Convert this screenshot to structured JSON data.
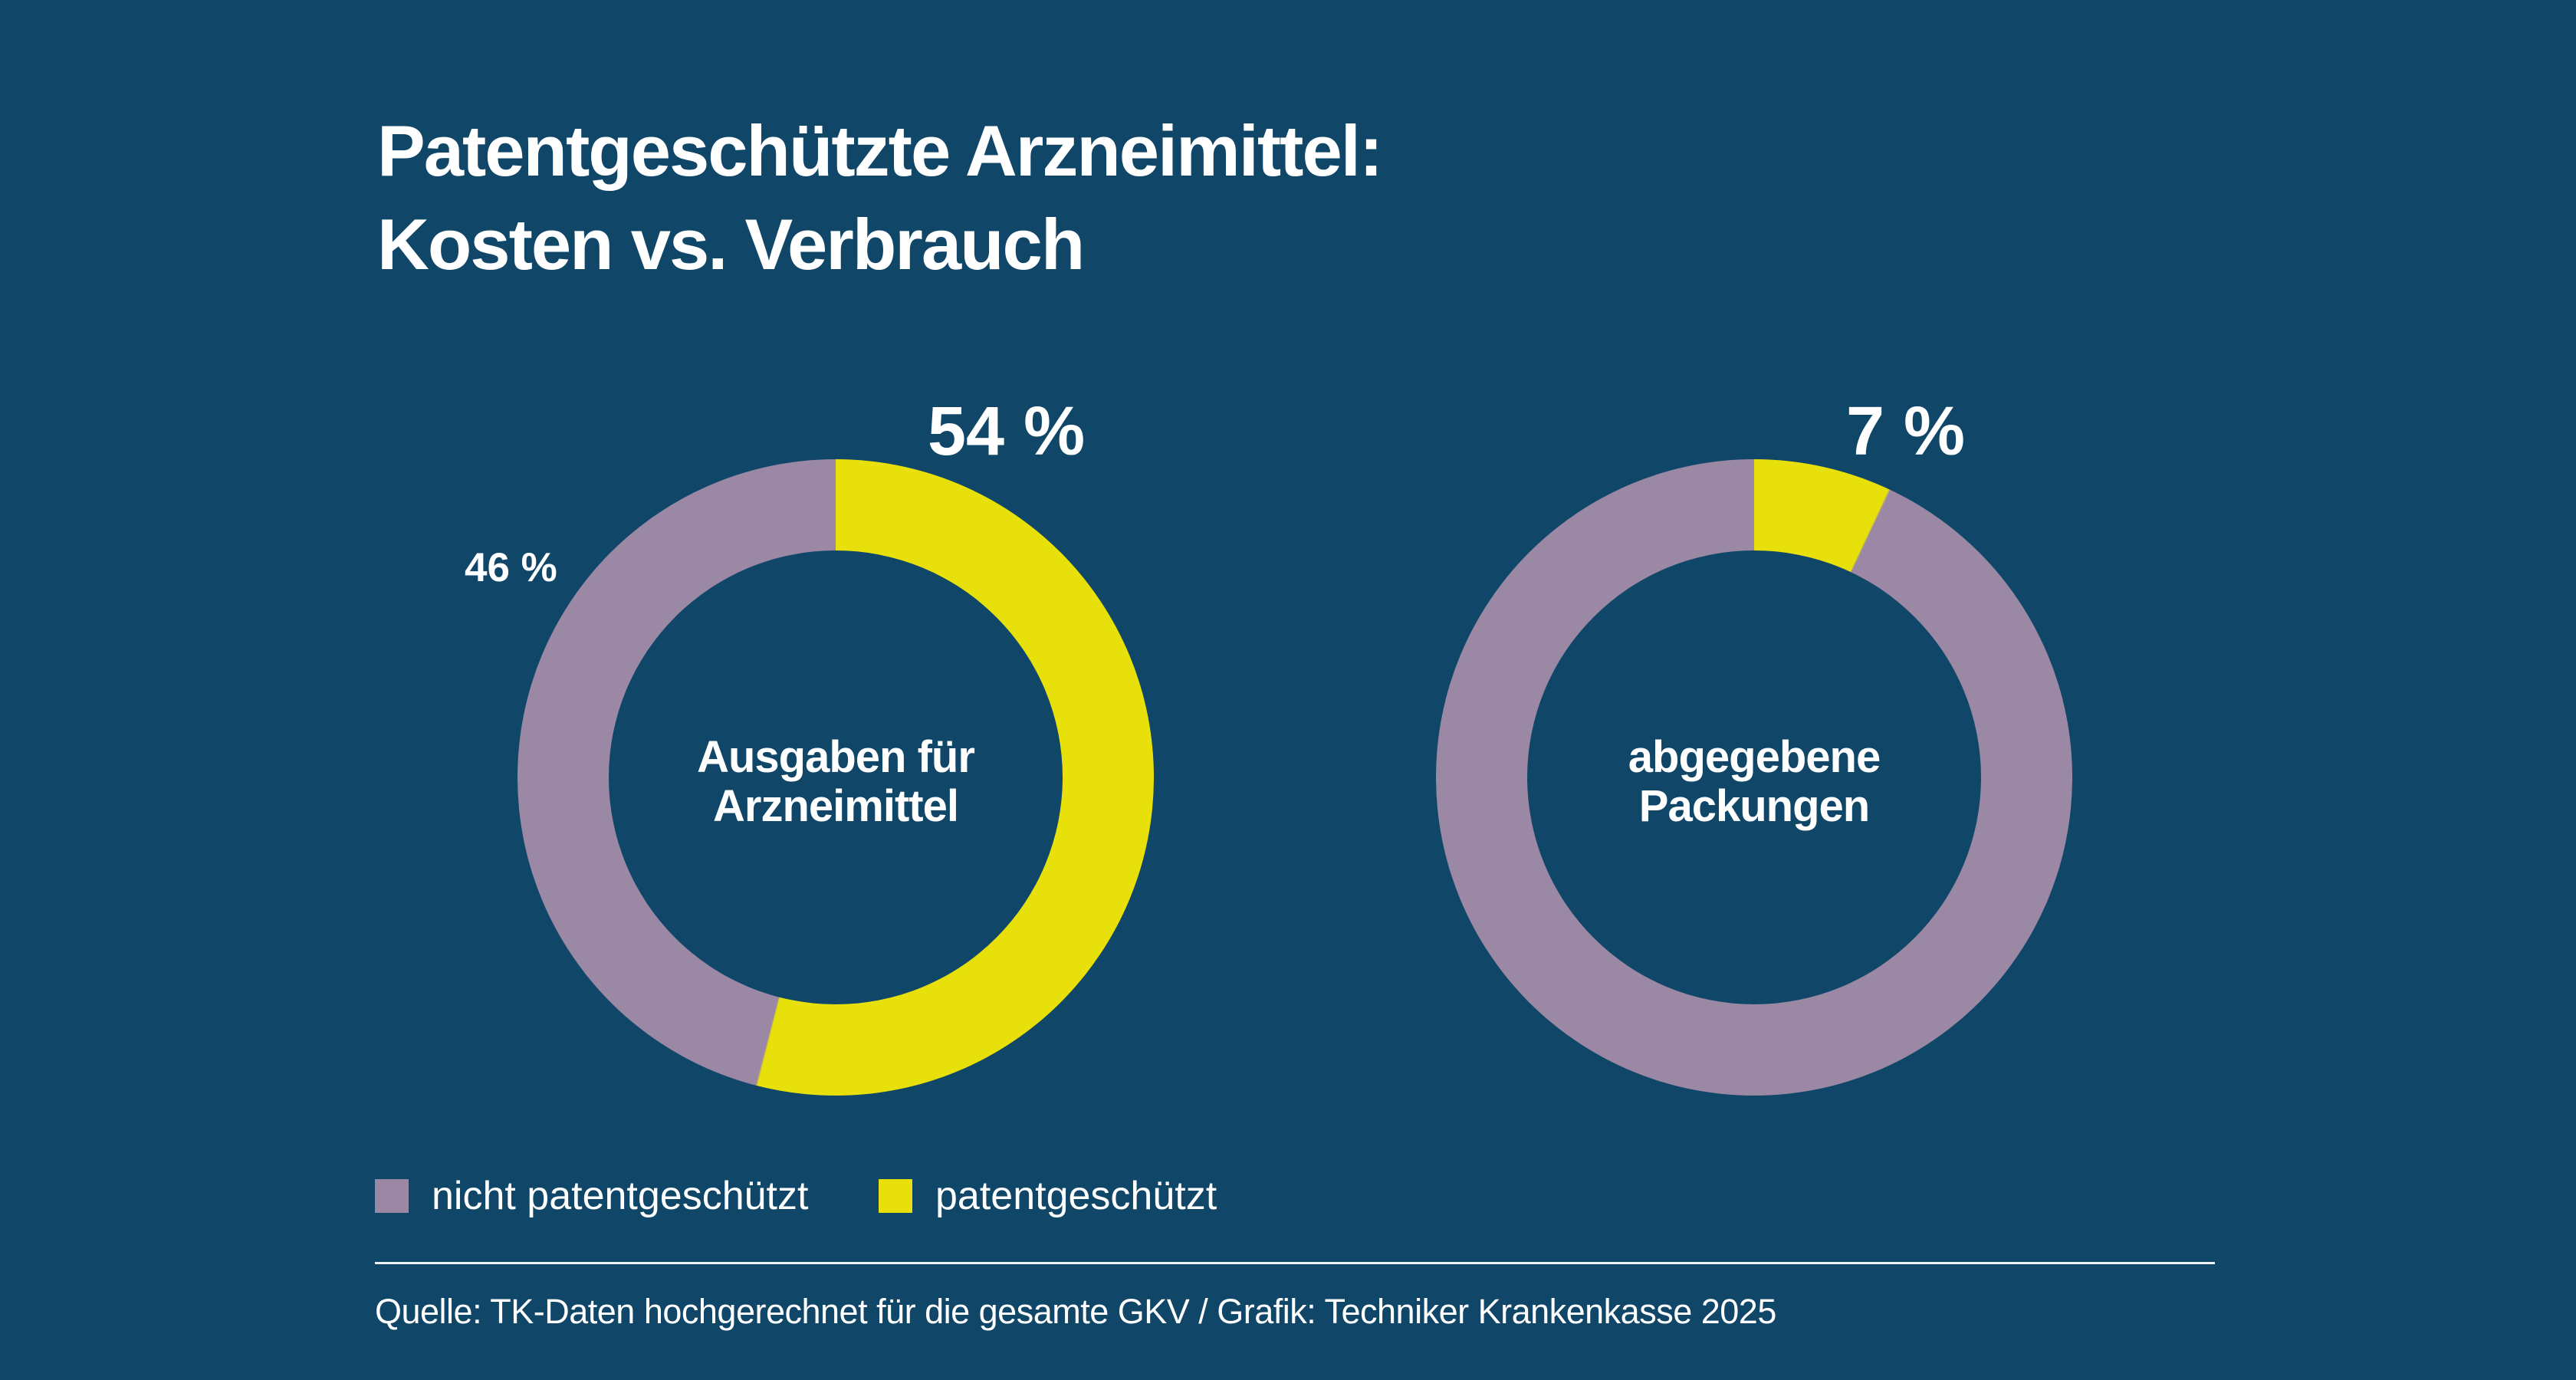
{
  "title": {
    "line1": "Patentgeschützte Arzneimittel:",
    "line2": "Kosten vs. Verbrauch"
  },
  "chart_data": [
    {
      "type": "pie",
      "variant": "donut",
      "title": "Ausgaben für Arzneimittel",
      "center_label": [
        "Ausgaben für",
        "Arzneimittel"
      ],
      "categories": [
        "patentgeschützt",
        "nicht patentgeschützt"
      ],
      "values": [
        54,
        46
      ],
      "unit": "%",
      "value_labels": [
        "54 %",
        "46 %"
      ],
      "start_angle_deg": 0,
      "direction": "clockwise",
      "legend_position": "bottom-left"
    },
    {
      "type": "pie",
      "variant": "donut",
      "title": "abgegebene Packungen",
      "center_label": [
        "abgegebene",
        "Packungen"
      ],
      "categories": [
        "patentgeschützt",
        "nicht patentgeschützt"
      ],
      "values": [
        7,
        93
      ],
      "unit": "%",
      "value_labels": [
        "7 %"
      ],
      "start_angle_deg": 0,
      "direction": "clockwise",
      "legend_position": "bottom-left"
    }
  ],
  "legend": {
    "items": [
      {
        "label": "nicht patentgeschützt",
        "color": "#9A88A4"
      },
      {
        "label": "patentgeschützt",
        "color": "#E8E00B"
      }
    ]
  },
  "source": "Quelle: TK-Daten hochgerechnet für die gesamte GKV / Grafik: Techniker Krankenkasse 2025",
  "colors": {
    "background": "#104668",
    "patented": "#E8E00B",
    "not_patented": "#9A88A4",
    "text": "#FFFFFF",
    "divider": "#EFF3F5"
  }
}
